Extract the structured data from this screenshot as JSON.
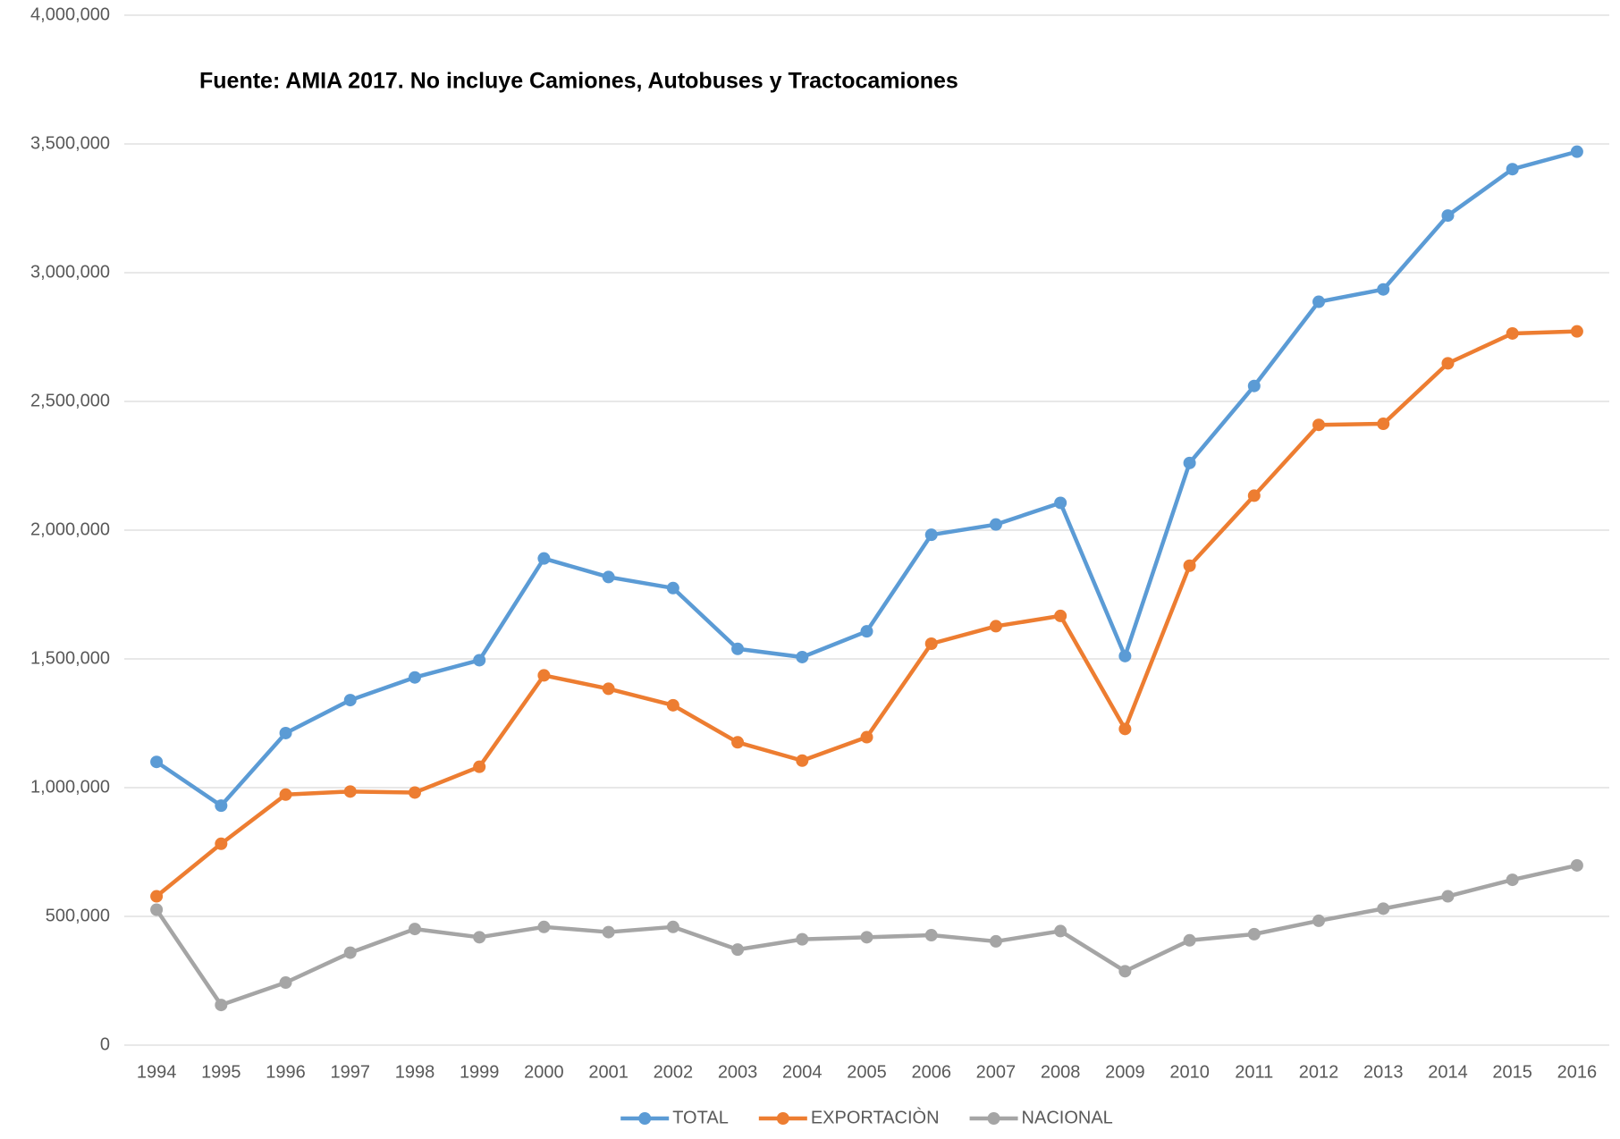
{
  "chart_data": {
    "type": "line",
    "title": "Fuente: AMIA 2017. No incluye Camiones, Autobuses y Tractocamiones",
    "categories": [
      "1994",
      "1995",
      "1996",
      "1997",
      "1998",
      "1999",
      "2000",
      "2001",
      "2002",
      "2003",
      "2004",
      "2005",
      "2006",
      "2007",
      "2008",
      "2009",
      "2010",
      "2011",
      "2012",
      "2013",
      "2014",
      "2015",
      "2016"
    ],
    "series": [
      {
        "name": "TOTAL",
        "color": "#5b9bd5",
        "values": [
          1100000,
          930000,
          1212000,
          1340000,
          1428000,
          1495000,
          1890000,
          1818000,
          1775000,
          1539000,
          1507000,
          1607000,
          1982000,
          2022000,
          2106000,
          1511000,
          2261000,
          2560000,
          2887000,
          2935000,
          3222000,
          3402000,
          3470000
        ]
      },
      {
        "name": "EXPORTACIÒN",
        "color": "#ed7d31",
        "values": [
          578000,
          782000,
          973000,
          985000,
          981000,
          1081000,
          1436000,
          1384000,
          1320000,
          1176000,
          1105000,
          1196000,
          1559000,
          1627000,
          1667000,
          1228000,
          1862000,
          2134000,
          2409000,
          2413000,
          2648000,
          2764000,
          2772000
        ]
      },
      {
        "name": "NACIONAL",
        "color": "#a5a5a5",
        "values": [
          526000,
          156000,
          243000,
          359000,
          451000,
          419000,
          459000,
          439000,
          459000,
          371000,
          411000,
          419000,
          427000,
          403000,
          443000,
          287000,
          407000,
          431000,
          483000,
          530000,
          578000,
          642000,
          698000
        ]
      }
    ],
    "ylim": [
      0,
      4000000
    ],
    "yticks": [
      0,
      {
        "value": 500000,
        "label": "500,000"
      },
      {
        "value": 1000000,
        "label": "1,000,000"
      },
      {
        "value": 1500000,
        "label": "1,500,000"
      },
      {
        "value": 2000000,
        "label": "2,000,000"
      },
      {
        "value": 2500000,
        "label": "2,500,000"
      },
      {
        "value": 3000000,
        "label": "3,000,000"
      },
      {
        "value": 3500000,
        "label": "3,500,000"
      },
      {
        "value": 4000000,
        "label": "4,000,000"
      }
    ],
    "grid": true,
    "legend": "bottom"
  }
}
